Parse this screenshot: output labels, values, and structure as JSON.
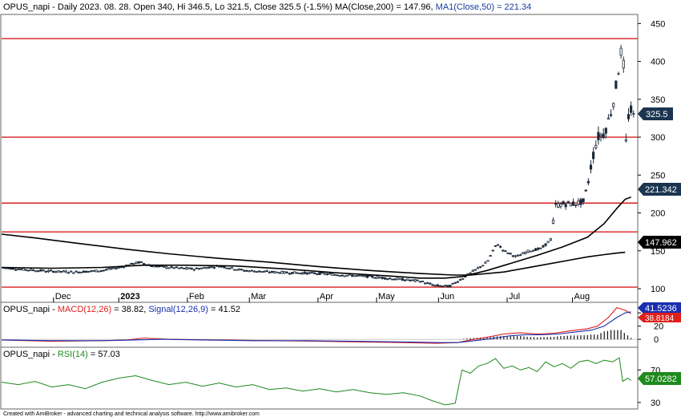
{
  "header": {
    "symbol": "OPUS_napi",
    "info": " - Daily 2023. 08. 28. Open 340, Hi 346.5, Lo 321.5, Close 325.5 (-1.5%) ",
    "ma200_text": "MA(Close,200) = 147.96,",
    "ma50_text": "MA1(Close,50) = 221.34",
    "ma200_color": "#000000",
    "ma50_color": "#1a3d9c"
  },
  "macd_header": {
    "prefix": "OPUS_napi - ",
    "macd_text": "MACD(12,26)",
    "macd_value": " = 38.82, ",
    "signal_text": "Signal(12,26,9)",
    "signal_value": " = 41.52",
    "macd_color": "#e0201b",
    "signal_color": "#1a2fae"
  },
  "rsi_header": {
    "prefix": "OPUS_napi - ",
    "rsi_text": "RSI(14)",
    "rsi_value": " = 57.03",
    "rsi_color": "#1d8a1d"
  },
  "footer": {
    "text": "Created with AmiBroker - advanced charting and technical analysis software. http://www.amibroker.com"
  },
  "price_badges": {
    "close": "325.5",
    "ma50": "221.342",
    "ma200": "147.962"
  },
  "macd_badges": {
    "signal": "41.5236",
    "macd": "38.8184"
  },
  "rsi_badges": {
    "rsi": "57.0282"
  },
  "colors": {
    "level_line": "#d81e1e",
    "candle": "#1b2a3a",
    "macd": "#e0201b",
    "signal": "#1a2fae",
    "rsi": "#1d8a1d",
    "badge_close": "#1b3550",
    "badge_ma50": "#1b3550",
    "badge_ma200": "#000000",
    "badge_signal": "#1a2fae",
    "badge_macd": "#e0201b",
    "badge_rsi": "#1d8a1d"
  },
  "chart_data": [
    {
      "type": "candlestick",
      "title": "OPUS_napi - Daily 2023. 08. 28. Open 340, Hi 346.5, Lo 321.5, Close 325.5 (-1.5%)",
      "x_tick_labels": [
        "Dec",
        "2023",
        "Feb",
        "Mar",
        "Apr",
        "May",
        "Jun",
        "Jul",
        "Aug"
      ],
      "y_tick_labels": [
        "450",
        "400",
        "350",
        "300",
        "250",
        "200",
        "150",
        "100"
      ],
      "y_ticks": [
        450,
        400,
        350,
        300,
        250,
        200,
        150,
        100
      ],
      "ylim": [
        82,
        462
      ],
      "horizontal_levels": [
        430,
        300,
        213,
        175,
        102
      ],
      "series": [
        {
          "name": "MA(Close,200)",
          "last_value": 147.962,
          "points": [
            [
              0,
              172
            ],
            [
              40,
              167
            ],
            [
              90,
              160
            ],
            [
              150,
              152
            ],
            [
              200,
              146
            ],
            [
              260,
              140
            ],
            [
              320,
              135
            ],
            [
              380,
              129
            ],
            [
              440,
              124
            ],
            [
              500,
              120
            ],
            [
              540,
              118
            ],
            [
              560,
              118
            ],
            [
              600,
              122
            ],
            [
              640,
              130
            ],
            [
              680,
              138
            ],
            [
              700,
              142
            ],
            [
              720,
              145
            ],
            [
              735,
              147
            ],
            [
              745,
              148
            ]
          ]
        },
        {
          "name": "MA1(Close,50)",
          "last_value": 221.342,
          "points": [
            [
              0,
              128
            ],
            [
              60,
              127
            ],
            [
              120,
              128
            ],
            [
              170,
              131
            ],
            [
              220,
              131
            ],
            [
              280,
              130
            ],
            [
              340,
              126
            ],
            [
              400,
              121
            ],
            [
              460,
              117
            ],
            [
              500,
              114
            ],
            [
              530,
              114
            ],
            [
              550,
              116
            ],
            [
              580,
              124
            ],
            [
              610,
              134
            ],
            [
              640,
              144
            ],
            [
              670,
              155
            ],
            [
              700,
              168
            ],
            [
              720,
              186
            ],
            [
              735,
              206
            ],
            [
              745,
              218
            ],
            [
              752,
              221
            ]
          ]
        }
      ]
    },
    {
      "type": "line",
      "title": "OPUS_napi - MACD(12,26) = 38.82, Signal(12,26,9) = 41.52",
      "y_tick_labels": [
        "40",
        "20",
        "0"
      ],
      "y_ticks": [
        40,
        20,
        0
      ],
      "ylim": [
        -12,
        56
      ],
      "series": [
        {
          "name": "MACD(12,26)",
          "last_value": 38.8184,
          "points": [
            [
              0,
              -1
            ],
            [
              60,
              -3
            ],
            [
              120,
              -2
            ],
            [
              150,
              -1
            ],
            [
              170,
              2
            ],
            [
              200,
              0
            ],
            [
              260,
              -1
            ],
            [
              320,
              -2
            ],
            [
              380,
              -3
            ],
            [
              430,
              -4
            ],
            [
              480,
              -5
            ],
            [
              520,
              -6
            ],
            [
              545,
              -5
            ],
            [
              560,
              -1
            ],
            [
              580,
              3
            ],
            [
              600,
              8
            ],
            [
              620,
              10
            ],
            [
              640,
              8
            ],
            [
              660,
              9
            ],
            [
              680,
              13
            ],
            [
              700,
              16
            ],
            [
              712,
              20
            ],
            [
              725,
              33
            ],
            [
              735,
              48
            ],
            [
              745,
              44
            ],
            [
              752,
              38.8
            ]
          ]
        },
        {
          "name": "Signal(12,26,9)",
          "last_value": 41.5236,
          "points": [
            [
              0,
              -1
            ],
            [
              60,
              -2
            ],
            [
              120,
              -2
            ],
            [
              160,
              -1
            ],
            [
              190,
              0
            ],
            [
              240,
              -1
            ],
            [
              300,
              -2
            ],
            [
              360,
              -2
            ],
            [
              420,
              -3
            ],
            [
              480,
              -4
            ],
            [
              520,
              -5
            ],
            [
              545,
              -5
            ],
            [
              565,
              -2
            ],
            [
              585,
              1
            ],
            [
              605,
              5
            ],
            [
              625,
              7
            ],
            [
              645,
              7
            ],
            [
              665,
              8
            ],
            [
              685,
              11
            ],
            [
              705,
              14
            ],
            [
              720,
              20
            ],
            [
              735,
              33
            ],
            [
              745,
              40
            ],
            [
              752,
              41.5
            ]
          ]
        }
      ]
    },
    {
      "type": "line",
      "title": "OPUS_napi - RSI(14) = 57.03",
      "y_tick_labels": [
        "70",
        "30"
      ],
      "y_ticks": [
        70,
        30
      ],
      "ylim": [
        22,
        98
      ],
      "series": [
        {
          "name": "RSI(14)",
          "last_value": 57.0282,
          "points": [
            [
              0,
              55
            ],
            [
              20,
              52
            ],
            [
              40,
              56
            ],
            [
              60,
              49
            ],
            [
              80,
              52
            ],
            [
              100,
              47
            ],
            [
              120,
              55
            ],
            [
              140,
              60
            ],
            [
              160,
              63
            ],
            [
              180,
              57
            ],
            [
              200,
              52
            ],
            [
              220,
              55
            ],
            [
              240,
              50
            ],
            [
              260,
              54
            ],
            [
              280,
              49
            ],
            [
              300,
              52
            ],
            [
              320,
              46
            ],
            [
              340,
              48
            ],
            [
              360,
              44
            ],
            [
              380,
              47
            ],
            [
              400,
              43
            ],
            [
              420,
              46
            ],
            [
              440,
              42
            ],
            [
              460,
              40
            ],
            [
              480,
              42
            ],
            [
              500,
              38
            ],
            [
              515,
              32
            ],
            [
              530,
              27
            ],
            [
              542,
              29
            ],
            [
              550,
              70
            ],
            [
              560,
              66
            ],
            [
              570,
              75
            ],
            [
              580,
              78
            ],
            [
              590,
              84
            ],
            [
              600,
              72
            ],
            [
              610,
              75
            ],
            [
              620,
              70
            ],
            [
              630,
              73
            ],
            [
              640,
              68
            ],
            [
              650,
              80
            ],
            [
              660,
              74
            ],
            [
              670,
              78
            ],
            [
              680,
              72
            ],
            [
              690,
              80
            ],
            [
              700,
              82
            ],
            [
              710,
              78
            ],
            [
              720,
              82
            ],
            [
              730,
              80
            ],
            [
              738,
              85
            ],
            [
              742,
              56
            ],
            [
              748,
              60
            ],
            [
              752,
              57
            ]
          ]
        }
      ]
    }
  ]
}
